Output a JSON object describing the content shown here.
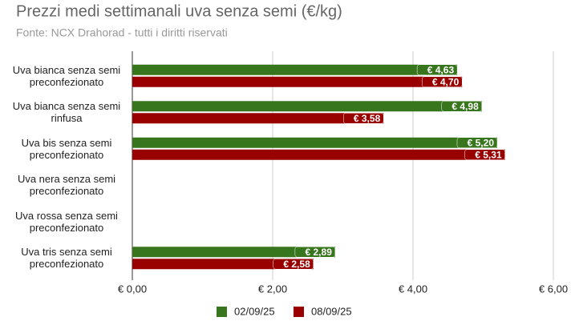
{
  "chart_data": {
    "type": "hbar",
    "title": "Prezzi medi settimanali uva senza semi (€/kg)",
    "subtitle": "Fonte: NCX Drahorad - tutti i diritti riservati",
    "categories": [
      "Uva bianca senza semi preconfezionato",
      "Uva bianca senza semi rinfusa",
      "Uva bis senza semi preconfezionato",
      "Uva nera senza semi preconfezionato",
      "Uva rossa senza semi preconfezionato",
      "Uva tris senza semi preconfezionato"
    ],
    "series": [
      {
        "name": "02/09/25",
        "color": "#38761d",
        "values": [
          4.63,
          4.98,
          5.2,
          null,
          null,
          2.89
        ],
        "value_labels": [
          "€ 4,63",
          "€ 4,98",
          "€ 5,20",
          null,
          null,
          "€ 2,89"
        ]
      },
      {
        "name": "08/09/25",
        "color": "#990000",
        "values": [
          4.7,
          3.58,
          5.31,
          null,
          null,
          2.58
        ],
        "value_labels": [
          "€ 4,70",
          "€ 3,58",
          "€ 5,31",
          null,
          null,
          "€ 2,58"
        ]
      }
    ],
    "xlim": [
      0,
      6
    ],
    "xticks": [
      {
        "value": 0,
        "label": "€ 0,00"
      },
      {
        "value": 2,
        "label": "€ 2,00"
      },
      {
        "value": 4,
        "label": "€ 4,00"
      },
      {
        "value": 6,
        "label": "€ 6,00"
      }
    ],
    "grid": true,
    "legend": "bottom"
  }
}
